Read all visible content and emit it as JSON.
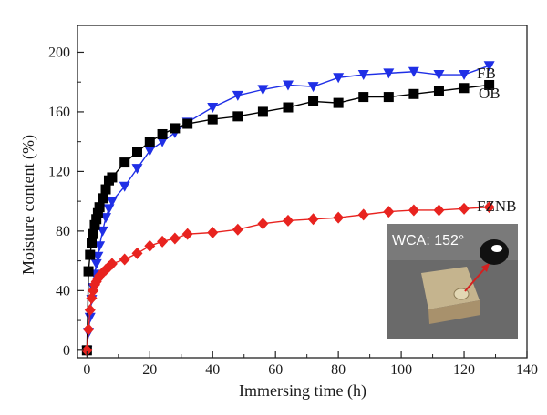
{
  "chart_data": {
    "type": "line",
    "xlabel": "Immersing time (h)",
    "ylabel": "Moisture content (%)",
    "xlim": [
      -3,
      140
    ],
    "ylim": [
      -5,
      218
    ],
    "xticks": [
      0,
      20,
      40,
      60,
      80,
      100,
      120,
      140
    ],
    "yticks": [
      0,
      40,
      80,
      120,
      160,
      200
    ],
    "grid": false,
    "series": [
      {
        "name": "FB",
        "color": "#1f2fe6",
        "marker": "triangle-down",
        "x": [
          0,
          0.5,
          1,
          1.5,
          2,
          2.5,
          3,
          3.5,
          4,
          5,
          6,
          7,
          8,
          12,
          16,
          20,
          24,
          28,
          32,
          40,
          48,
          56,
          64,
          72,
          80,
          88,
          96,
          104,
          112,
          120,
          128
        ],
        "y": [
          0,
          12,
          22,
          34,
          42,
          51,
          58,
          63,
          70,
          80,
          89,
          95,
          100,
          110,
          122,
          134,
          140,
          146,
          153,
          163,
          171,
          175,
          178,
          177,
          183,
          185,
          186,
          187,
          185,
          185,
          191
        ]
      },
      {
        "name": "OB",
        "color": "#000000",
        "marker": "square",
        "x": [
          0,
          0.5,
          1,
          1.5,
          2,
          2.5,
          3,
          3.5,
          4,
          5,
          6,
          7,
          8,
          12,
          16,
          20,
          24,
          28,
          32,
          40,
          48,
          56,
          64,
          72,
          80,
          88,
          96,
          104,
          112,
          120,
          128
        ],
        "y": [
          0,
          53,
          64,
          72,
          78,
          84,
          88,
          92,
          96,
          102,
          108,
          114,
          116,
          126,
          133,
          140,
          145,
          149,
          152,
          155,
          157,
          160,
          163,
          167,
          166,
          170,
          170,
          172,
          174,
          176,
          178
        ]
      },
      {
        "name": "FZNB",
        "color": "#e8231f",
        "marker": "diamond",
        "x": [
          0,
          0.5,
          1,
          1.5,
          2,
          2.5,
          3,
          3.5,
          4,
          5,
          6,
          7,
          8,
          12,
          16,
          20,
          24,
          28,
          32,
          40,
          48,
          56,
          64,
          72,
          80,
          88,
          96,
          104,
          112,
          120,
          128
        ],
        "y": [
          0,
          14,
          27,
          35,
          40,
          44,
          46,
          48,
          50,
          52,
          54,
          56,
          58,
          61,
          65,
          70,
          73,
          75,
          78,
          79,
          81,
          85,
          87,
          88,
          89,
          91,
          93,
          94,
          94,
          95,
          96
        ]
      }
    ],
    "inset": {
      "text": "WCA: 152°"
    }
  }
}
